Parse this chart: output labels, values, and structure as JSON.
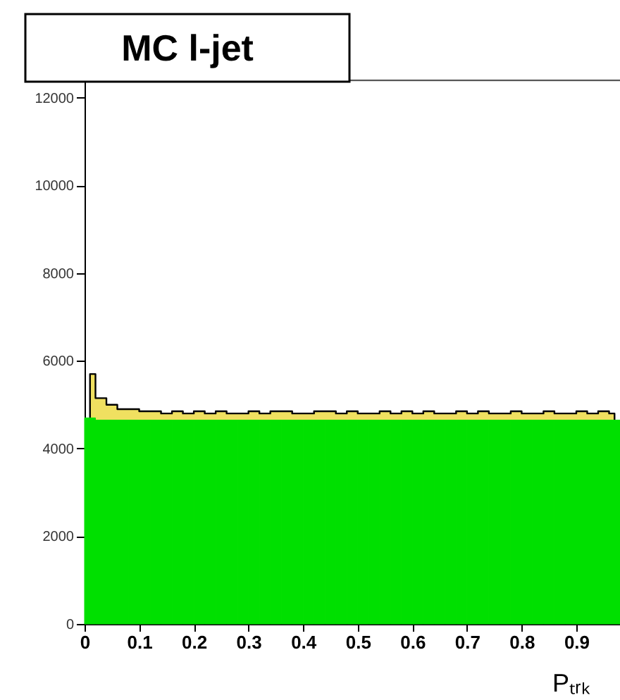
{
  "chart_data": {
    "type": "histogram",
    "title": "MC l-jet",
    "xlabel": "Pₜᵣₖ",
    "bins": [
      0,
      0.02,
      0.04,
      0.06,
      0.08,
      0.1,
      0.12,
      0.14,
      0.16,
      0.18,
      0.2,
      0.22,
      0.24,
      0.26,
      0.28,
      0.3,
      0.32,
      0.34,
      0.36,
      0.38,
      0.4,
      0.42,
      0.44,
      0.46,
      0.48,
      0.5,
      0.52,
      0.54,
      0.56,
      0.58,
      0.6,
      0.62,
      0.64,
      0.66,
      0.68,
      0.7,
      0.72,
      0.74,
      0.76,
      0.78,
      0.8,
      0.82,
      0.84,
      0.86,
      0.88,
      0.9,
      0.92,
      0.94,
      0.96,
      0.98
    ],
    "series": [
      {
        "type": "area",
        "color": "#f0e060",
        "x": [
          0.01,
          0.03,
          0.05,
          0.07,
          0.09,
          0.11,
          0.13,
          0.15,
          0.17,
          0.19,
          0.21,
          0.23,
          0.25,
          0.27,
          0.29,
          0.31,
          0.33,
          0.35,
          0.37,
          0.39,
          0.41,
          0.43,
          0.45,
          0.47,
          0.49,
          0.51,
          0.53,
          0.55,
          0.57,
          0.59,
          0.61,
          0.63,
          0.65,
          0.67,
          0.69,
          0.71,
          0.73,
          0.75,
          0.77,
          0.79,
          0.81,
          0.83,
          0.85,
          0.87,
          0.89,
          0.91,
          0.93,
          0.95,
          0.97
        ],
        "values": [
          5700,
          5150,
          5000,
          4900,
          4900,
          4850,
          4850,
          4800,
          4850,
          4800,
          4850,
          4800,
          4850,
          4800,
          4800,
          4850,
          4800,
          4850,
          4850,
          4800,
          4800,
          4850,
          4850,
          4800,
          4850,
          4800,
          4800,
          4850,
          4800,
          4850,
          4800,
          4850,
          4800,
          4800,
          4850,
          4800,
          4850,
          4800,
          4800,
          4850,
          4800,
          4800,
          4850,
          4800,
          4800,
          4850,
          4800,
          4850,
          4800
        ]
      },
      {
        "color": "#00e000",
        "values": [
          4700,
          4650,
          4650,
          4650,
          4650,
          4650,
          4650,
          4650,
          4650,
          4650,
          4650,
          4650,
          4650,
          4650,
          4650,
          4650,
          4650,
          4650,
          4650,
          4650,
          4650,
          4650,
          4650,
          4650,
          4650,
          4650,
          4650,
          4650,
          4650,
          4650,
          4650,
          4650,
          4650,
          4650,
          4650,
          4650,
          4650,
          4650,
          4650,
          4650,
          4650,
          4650,
          4650,
          4650,
          4650,
          4650,
          4650,
          4650,
          4650
        ]
      }
    ],
    "xlim": [
      0,
      0.98
    ],
    "ylim": [
      0,
      12400
    ],
    "xticks": [
      0,
      0.1,
      0.2,
      0.3,
      0.4,
      0.5,
      0.6,
      0.7,
      0.8,
      0.9
    ],
    "yticks": [
      0,
      2000,
      4000,
      6000,
      8000,
      10000,
      12000
    ],
    "grid": false
  }
}
